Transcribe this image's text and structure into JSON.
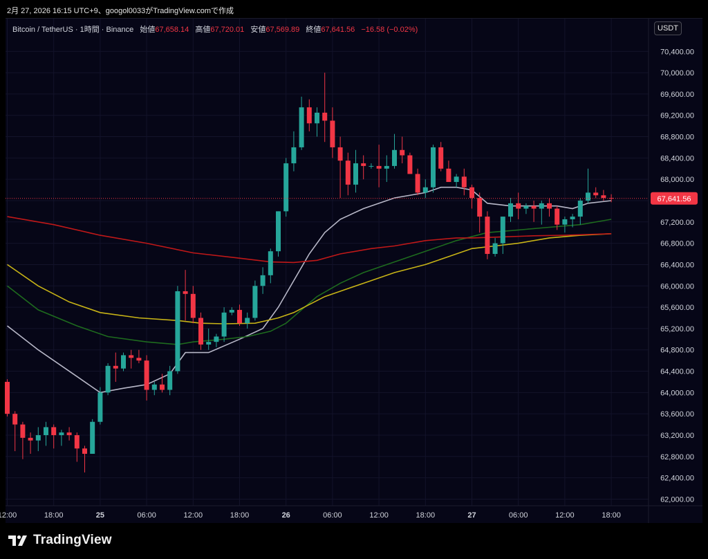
{
  "header": {
    "info": "2月 27, 2026 16:15 UTC+9、googol0033がTradingView.comで作成"
  },
  "legend": {
    "symbol": "Bitcoin / TetherUS · 1時間 · Binance",
    "open_label": "始値",
    "open": "67,658.14",
    "high_label": "高値",
    "high": "67,720.01",
    "low_label": "安値",
    "low": "67,569.89",
    "close_label": "終値",
    "close": "67,641.56",
    "change": "−16.58 (−0.02%)"
  },
  "currency_button": "USDT",
  "brand": "TradingView",
  "colors": {
    "background": "#060617",
    "up": "#26a69a",
    "down": "#f23645",
    "ma_white": "#b8b8c8",
    "ma_green": "#1e6b1e",
    "ma_yellow": "#c8b416",
    "ma_red": "#c01818"
  },
  "chart_data": {
    "type": "candlestick",
    "y_ticks": [
      "70,400.00",
      "70,000.00",
      "69,600.00",
      "69,200.00",
      "68,800.00",
      "68,400.00",
      "68,000.00",
      "67,600.00",
      "67,200.00",
      "66,800.00",
      "66,400.00",
      "66,000.00",
      "65,600.00",
      "65,200.00",
      "64,800.00",
      "64,400.00",
      "64,000.00",
      "63,600.00",
      "63,200.00",
      "62,800.00",
      "62,400.00",
      "62,000.00"
    ],
    "ylim": [
      61850,
      70650
    ],
    "x_ticks": [
      {
        "label": "12:00",
        "x": 0,
        "bold": false
      },
      {
        "label": "18:00",
        "x": 6,
        "bold": false
      },
      {
        "label": "25",
        "x": 12,
        "bold": true
      },
      {
        "label": "06:00",
        "x": 18,
        "bold": false
      },
      {
        "label": "12:00",
        "x": 24,
        "bold": false
      },
      {
        "label": "18:00",
        "x": 30,
        "bold": false
      },
      {
        "label": "26",
        "x": 36,
        "bold": true
      },
      {
        "label": "06:00",
        "x": 42,
        "bold": false
      },
      {
        "label": "12:00",
        "x": 48,
        "bold": false
      },
      {
        "label": "18:00",
        "x": 54,
        "bold": false
      },
      {
        "label": "27",
        "x": 60,
        "bold": true
      },
      {
        "label": "06:00",
        "x": 66,
        "bold": false
      },
      {
        "label": "12:00",
        "x": 72,
        "bold": false
      },
      {
        "label": "18:00",
        "x": 78,
        "bold": false
      }
    ],
    "last_price": "67,641.56",
    "last_value": 67641.56,
    "candles": [
      [
        64200,
        64250,
        63550,
        63600
      ],
      [
        63600,
        63650,
        62900,
        63400
      ],
      [
        63400,
        63450,
        62750,
        63150
      ],
      [
        63150,
        63250,
        62850,
        63100
      ],
      [
        63100,
        63350,
        62900,
        63200
      ],
      [
        63200,
        63450,
        63000,
        63350
      ],
      [
        63350,
        63400,
        62950,
        63200
      ],
      [
        63200,
        63300,
        63000,
        63250
      ],
      [
        63250,
        63350,
        63100,
        63200
      ],
      [
        63200,
        63250,
        62700,
        62950
      ],
      [
        62950,
        63000,
        62500,
        62850
      ],
      [
        62850,
        63500,
        62850,
        63450
      ],
      [
        63450,
        64100,
        63400,
        64000
      ],
      [
        64000,
        64550,
        63950,
        64500
      ],
      [
        64500,
        64750,
        64200,
        64450
      ],
      [
        64450,
        64750,
        64400,
        64700
      ],
      [
        64700,
        64800,
        64450,
        64650
      ],
      [
        64650,
        64800,
        64550,
        64600
      ],
      [
        64600,
        64700,
        63850,
        64050
      ],
      [
        64050,
        64200,
        63950,
        64150
      ],
      [
        64150,
        64350,
        64000,
        64050
      ],
      [
        64050,
        64500,
        63950,
        64400
      ],
      [
        64400,
        66000,
        64350,
        65900
      ],
      [
        65900,
        66300,
        65350,
        65850
      ],
      [
        65850,
        66000,
        65300,
        65400
      ],
      [
        65400,
        65500,
        64800,
        64900
      ],
      [
        64900,
        65200,
        64800,
        64950
      ],
      [
        64950,
        65100,
        64850,
        65050
      ],
      [
        65050,
        65600,
        64950,
        65500
      ],
      [
        65500,
        65600,
        65450,
        65550
      ],
      [
        65550,
        65650,
        65250,
        65300
      ],
      [
        65300,
        65500,
        65200,
        65400
      ],
      [
        65400,
        66100,
        65350,
        66000
      ],
      [
        66000,
        66350,
        65850,
        66200
      ],
      [
        66200,
        66700,
        66050,
        66650
      ],
      [
        66650,
        67400,
        66550,
        67400
      ],
      [
        67400,
        68400,
        67300,
        68300
      ],
      [
        68300,
        68900,
        68150,
        68600
      ],
      [
        68600,
        69550,
        68550,
        69350
      ],
      [
        69350,
        69500,
        68900,
        69050
      ],
      [
        69050,
        69350,
        68800,
        69250
      ],
      [
        69250,
        70000,
        68700,
        69100
      ],
      [
        69100,
        69350,
        68400,
        68600
      ],
      [
        68600,
        68800,
        67650,
        68350
      ],
      [
        68350,
        68500,
        67700,
        67900
      ],
      [
        67900,
        68550,
        67750,
        68300
      ],
      [
        68300,
        68450,
        68000,
        68250
      ],
      [
        68250,
        68300,
        68200,
        68250
      ],
      [
        68250,
        68650,
        67850,
        68200
      ],
      [
        68200,
        68450,
        67950,
        68250
      ],
      [
        68250,
        68850,
        68200,
        68550
      ],
      [
        68550,
        68800,
        68300,
        68450
      ],
      [
        68450,
        68500,
        68100,
        68100
      ],
      [
        68100,
        68200,
        67700,
        67750
      ],
      [
        67750,
        68000,
        67650,
        67850
      ],
      [
        67850,
        68650,
        67750,
        68600
      ],
      [
        68600,
        68700,
        68150,
        68200
      ],
      [
        68200,
        68350,
        67950,
        67950
      ],
      [
        67950,
        68100,
        67850,
        68050
      ],
      [
        68050,
        68200,
        67700,
        67850
      ],
      [
        67850,
        67900,
        67450,
        67650
      ],
      [
        67650,
        67750,
        67000,
        67300
      ],
      [
        67300,
        67400,
        66500,
        66600
      ],
      [
        66600,
        66900,
        66550,
        66800
      ],
      [
        66800,
        67300,
        66600,
        67300
      ],
      [
        67300,
        67650,
        67200,
        67550
      ],
      [
        67550,
        67750,
        67250,
        67450
      ],
      [
        67450,
        67550,
        67350,
        67500
      ],
      [
        67500,
        67600,
        67200,
        67450
      ],
      [
        67450,
        67600,
        67150,
        67550
      ],
      [
        67550,
        67650,
        67300,
        67450
      ],
      [
        67450,
        67500,
        67050,
        67150
      ],
      [
        67150,
        67300,
        67000,
        67250
      ],
      [
        67250,
        67350,
        67100,
        67300
      ],
      [
        67300,
        67650,
        67150,
        67600
      ],
      [
        67600,
        68200,
        67550,
        67750
      ],
      [
        67750,
        67850,
        67650,
        67700
      ],
      [
        67700,
        67800,
        67600,
        67650
      ],
      [
        67650,
        67720,
        67570,
        67640
      ]
    ],
    "ma_series": [
      {
        "color": "#b8b8c8",
        "points": [
          [
            0,
            65250
          ],
          [
            4,
            64800
          ],
          [
            9,
            64300
          ],
          [
            12,
            64000
          ],
          [
            15,
            64080
          ],
          [
            18,
            64150
          ],
          [
            21,
            64350
          ],
          [
            23,
            64750
          ],
          [
            26,
            64750
          ],
          [
            30,
            65000
          ],
          [
            33,
            65200
          ],
          [
            35,
            65600
          ],
          [
            37,
            66100
          ],
          [
            39,
            66600
          ],
          [
            41,
            67000
          ],
          [
            43,
            67250
          ],
          [
            46,
            67450
          ],
          [
            50,
            67650
          ],
          [
            54,
            67750
          ],
          [
            56,
            67850
          ],
          [
            58,
            67850
          ],
          [
            60,
            67800
          ],
          [
            62,
            67550
          ],
          [
            65,
            67500
          ],
          [
            68,
            67500
          ],
          [
            71,
            67500
          ],
          [
            73,
            67450
          ],
          [
            75,
            67550
          ],
          [
            78,
            67600
          ]
        ]
      },
      {
        "color": "#1e6b1e",
        "points": [
          [
            0,
            66000
          ],
          [
            4,
            65550
          ],
          [
            9,
            65250
          ],
          [
            13,
            65050
          ],
          [
            18,
            64950
          ],
          [
            22,
            64900
          ],
          [
            24,
            64950
          ],
          [
            28,
            65000
          ],
          [
            31,
            65050
          ],
          [
            34,
            65150
          ],
          [
            36,
            65300
          ],
          [
            38,
            65550
          ],
          [
            40,
            65800
          ],
          [
            43,
            66050
          ],
          [
            46,
            66250
          ],
          [
            50,
            66450
          ],
          [
            54,
            66650
          ],
          [
            58,
            66850
          ],
          [
            62,
            67000
          ],
          [
            66,
            67050
          ],
          [
            70,
            67100
          ],
          [
            74,
            67150
          ],
          [
            78,
            67250
          ]
        ]
      },
      {
        "color": "#c8b416",
        "points": [
          [
            0,
            66400
          ],
          [
            4,
            66000
          ],
          [
            8,
            65700
          ],
          [
            12,
            65500
          ],
          [
            17,
            65400
          ],
          [
            22,
            65350
          ],
          [
            25,
            65300
          ],
          [
            28,
            65290
          ],
          [
            32,
            65300
          ],
          [
            35,
            65400
          ],
          [
            37,
            65500
          ],
          [
            39,
            65650
          ],
          [
            41,
            65800
          ],
          [
            44,
            65950
          ],
          [
            47,
            66100
          ],
          [
            50,
            66250
          ],
          [
            54,
            66400
          ],
          [
            57,
            66550
          ],
          [
            60,
            66700
          ],
          [
            63,
            66750
          ],
          [
            66,
            66800
          ],
          [
            70,
            66900
          ],
          [
            74,
            66950
          ],
          [
            78,
            66980
          ]
        ]
      },
      {
        "color": "#c01818",
        "points": [
          [
            0,
            67300
          ],
          [
            6,
            67150
          ],
          [
            12,
            66950
          ],
          [
            18,
            66800
          ],
          [
            24,
            66620
          ],
          [
            30,
            66520
          ],
          [
            34,
            66450
          ],
          [
            37,
            66440
          ],
          [
            40,
            66480
          ],
          [
            43,
            66600
          ],
          [
            47,
            66700
          ],
          [
            50,
            66750
          ],
          [
            54,
            66850
          ],
          [
            58,
            66900
          ],
          [
            60,
            66900
          ],
          [
            64,
            66920
          ],
          [
            68,
            66940
          ],
          [
            72,
            66950
          ],
          [
            76,
            66970
          ],
          [
            78,
            66980
          ]
        ]
      }
    ]
  }
}
